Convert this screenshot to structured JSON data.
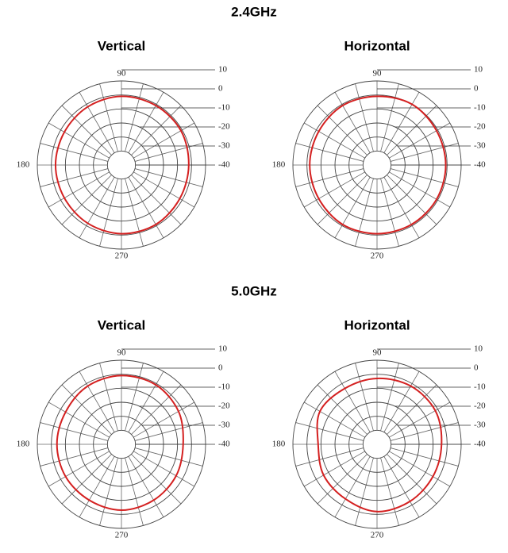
{
  "headings": [
    "2.4GHz",
    "5.0GHz"
  ],
  "chart_data": [
    {
      "type": "polar",
      "title": "Vertical",
      "color": "#d42020",
      "theta": [
        0,
        30,
        60,
        90,
        120,
        150,
        180,
        210,
        240,
        270,
        300,
        330
      ],
      "values": [
        -2,
        -1,
        -1,
        -1,
        -2,
        -3,
        -3,
        -3,
        -2,
        -1,
        -1,
        -2
      ],
      "rlim": [
        -50,
        10
      ],
      "rticks": [
        10,
        0,
        -10,
        -20,
        -30,
        -40
      ],
      "angle_ticks": [
        90,
        180,
        270
      ]
    },
    {
      "type": "polar",
      "title": "Horizontal",
      "color": "#d42020",
      "theta": [
        0,
        30,
        60,
        90,
        120,
        150,
        180,
        210,
        240,
        270,
        300,
        330
      ],
      "values": [
        -1,
        -1,
        0,
        -1,
        -1,
        -2,
        -2,
        -2,
        -1,
        -1,
        -1,
        -1
      ],
      "rlim": [
        -50,
        10
      ],
      "rticks": [
        10,
        0,
        -10,
        -20,
        -30,
        -40
      ],
      "angle_ticks": [
        90,
        180,
        270
      ]
    },
    {
      "type": "polar",
      "title": "Vertical",
      "color": "#d42020",
      "theta": [
        0,
        30,
        60,
        90,
        120,
        150,
        180,
        210,
        240,
        270,
        300,
        330
      ],
      "values": [
        -6,
        -3,
        -1,
        -1,
        -2,
        -4,
        -4,
        -4,
        -4,
        -3,
        -4,
        -5
      ],
      "rlim": [
        -50,
        10
      ],
      "rticks": [
        10,
        0,
        -10,
        -20,
        -30,
        -40
      ],
      "angle_ticks": [
        90,
        180,
        270
      ]
    },
    {
      "type": "polar",
      "title": "Horizontal",
      "color": "#d42020",
      "theta": [
        0,
        30,
        60,
        90,
        120,
        150,
        180,
        210,
        240,
        270,
        300,
        330
      ],
      "values": [
        -4,
        -2,
        -2,
        -3,
        -4,
        -3,
        -8,
        -6,
        -5,
        -2,
        -3,
        -4
      ],
      "rlim": [
        -50,
        10
      ],
      "rticks": [
        10,
        0,
        -10,
        -20,
        -30,
        -40
      ],
      "angle_ticks": [
        90,
        180,
        270
      ]
    }
  ]
}
